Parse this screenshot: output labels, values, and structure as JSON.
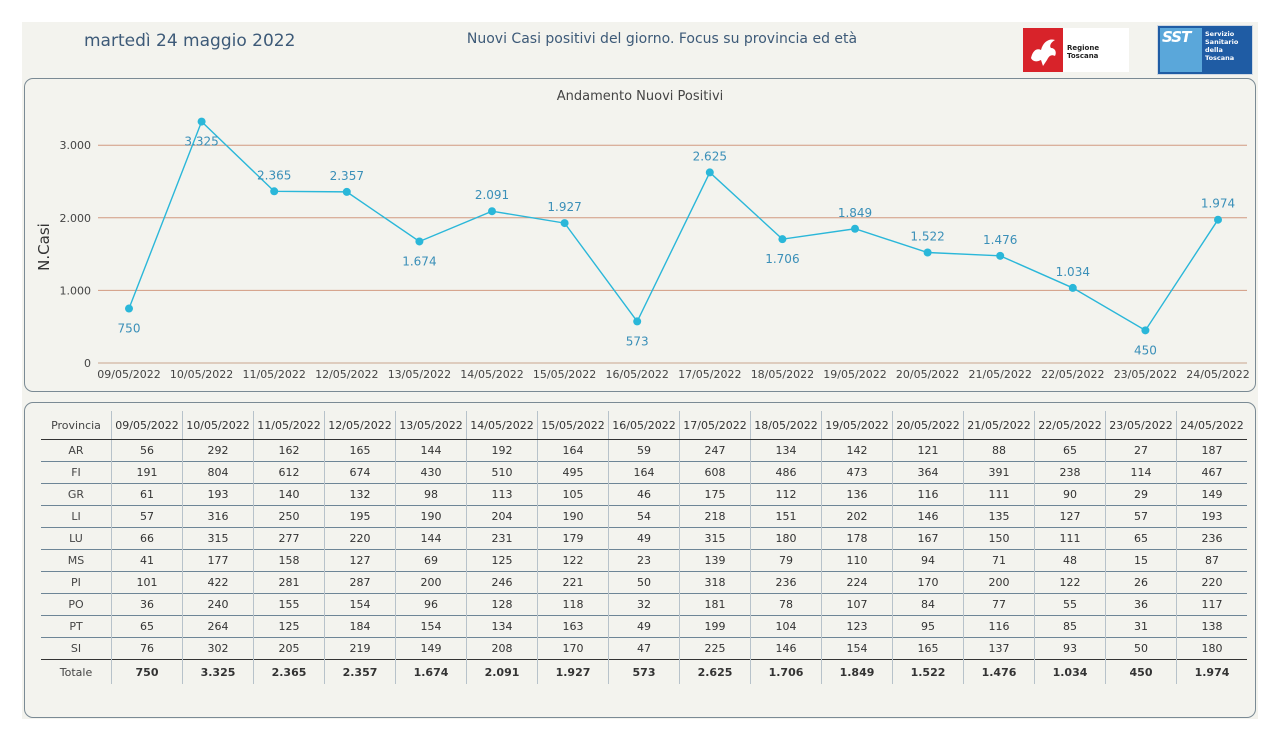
{
  "header": {
    "date": "martedì 24 maggio 2022",
    "title": "Nuovi Casi positivi del giorno. Focus su provincia ed età",
    "logo_regione": "Regione Toscana",
    "logo_sst_mark": "SST",
    "logo_sst_text": "Servizio Sanitario della Toscana"
  },
  "chart_data": {
    "type": "line",
    "title": "Andamento Nuovi Positivi",
    "ylabel": "N.Casi",
    "xlabel": "",
    "ylim": [
      0,
      3500
    ],
    "yticks": [
      0,
      1000,
      2000,
      3000
    ],
    "ytick_labels": [
      "0",
      "1.000",
      "2.000",
      "3.000"
    ],
    "grid": "horizontal",
    "color": "#2ab7d9",
    "x": [
      "09/05/2022",
      "10/05/2022",
      "11/05/2022",
      "12/05/2022",
      "13/05/2022",
      "14/05/2022",
      "15/05/2022",
      "16/05/2022",
      "17/05/2022",
      "18/05/2022",
      "19/05/2022",
      "20/05/2022",
      "21/05/2022",
      "22/05/2022",
      "23/05/2022",
      "24/05/2022"
    ],
    "values": [
      750,
      3325,
      2365,
      2357,
      1674,
      2091,
      1927,
      573,
      2625,
      1706,
      1849,
      1522,
      1476,
      1034,
      450,
      1974
    ],
    "data_labels": [
      "750",
      "3.325",
      "2.365",
      "2.357",
      "1.674",
      "2.091",
      "1.927",
      "573",
      "2.625",
      "1.706",
      "1.849",
      "1.522",
      "1.476",
      "1.034",
      "450",
      "1.974"
    ],
    "label_below": [
      true,
      true,
      false,
      false,
      true,
      false,
      false,
      true,
      false,
      true,
      false,
      false,
      false,
      false,
      true,
      false
    ]
  },
  "table": {
    "header_label": "Provincia",
    "dates": [
      "09/05/2022",
      "10/05/2022",
      "11/05/2022",
      "12/05/2022",
      "13/05/2022",
      "14/05/2022",
      "15/05/2022",
      "16/05/2022",
      "17/05/2022",
      "18/05/2022",
      "19/05/2022",
      "20/05/2022",
      "21/05/2022",
      "22/05/2022",
      "23/05/2022",
      "24/05/2022"
    ],
    "rows": [
      {
        "name": "AR",
        "values": [
          "56",
          "292",
          "162",
          "165",
          "144",
          "192",
          "164",
          "59",
          "247",
          "134",
          "142",
          "121",
          "88",
          "65",
          "27",
          "187"
        ]
      },
      {
        "name": "FI",
        "values": [
          "191",
          "804",
          "612",
          "674",
          "430",
          "510",
          "495",
          "164",
          "608",
          "486",
          "473",
          "364",
          "391",
          "238",
          "114",
          "467"
        ]
      },
      {
        "name": "GR",
        "values": [
          "61",
          "193",
          "140",
          "132",
          "98",
          "113",
          "105",
          "46",
          "175",
          "112",
          "136",
          "116",
          "111",
          "90",
          "29",
          "149"
        ]
      },
      {
        "name": "LI",
        "values": [
          "57",
          "316",
          "250",
          "195",
          "190",
          "204",
          "190",
          "54",
          "218",
          "151",
          "202",
          "146",
          "135",
          "127",
          "57",
          "193"
        ]
      },
      {
        "name": "LU",
        "values": [
          "66",
          "315",
          "277",
          "220",
          "144",
          "231",
          "179",
          "49",
          "315",
          "180",
          "178",
          "167",
          "150",
          "111",
          "65",
          "236"
        ]
      },
      {
        "name": "MS",
        "values": [
          "41",
          "177",
          "158",
          "127",
          "69",
          "125",
          "122",
          "23",
          "139",
          "79",
          "110",
          "94",
          "71",
          "48",
          "15",
          "87"
        ]
      },
      {
        "name": "PI",
        "values": [
          "101",
          "422",
          "281",
          "287",
          "200",
          "246",
          "221",
          "50",
          "318",
          "236",
          "224",
          "170",
          "200",
          "122",
          "26",
          "220"
        ]
      },
      {
        "name": "PO",
        "values": [
          "36",
          "240",
          "155",
          "154",
          "96",
          "128",
          "118",
          "32",
          "181",
          "78",
          "107",
          "84",
          "77",
          "55",
          "36",
          "117"
        ]
      },
      {
        "name": "PT",
        "values": [
          "65",
          "264",
          "125",
          "184",
          "154",
          "134",
          "163",
          "49",
          "199",
          "104",
          "123",
          "95",
          "116",
          "85",
          "31",
          "138"
        ]
      },
      {
        "name": "SI",
        "values": [
          "76",
          "302",
          "205",
          "219",
          "149",
          "208",
          "170",
          "47",
          "225",
          "146",
          "154",
          "165",
          "137",
          "93",
          "50",
          "180"
        ]
      }
    ],
    "total": {
      "name": "Totale",
      "values": [
        "750",
        "3.325",
        "2.365",
        "2.357",
        "1.674",
        "2.091",
        "1.927",
        "573",
        "2.625",
        "1.706",
        "1.849",
        "1.522",
        "1.476",
        "1.034",
        "450",
        "1.974"
      ]
    }
  }
}
